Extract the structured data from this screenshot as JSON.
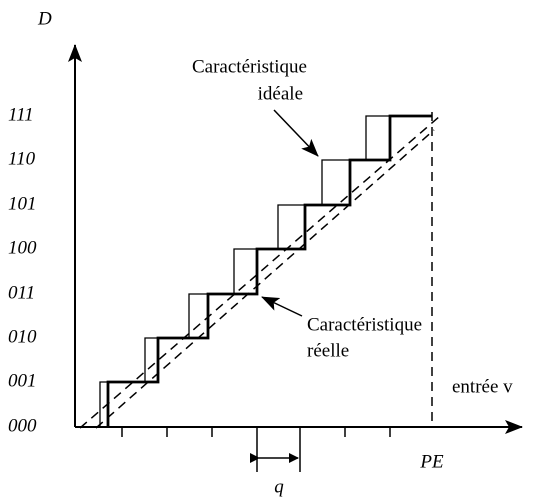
{
  "y_axis_label": "D",
  "x_axis_label": "entrée v",
  "full_scale_label": "PE",
  "step_label": "q",
  "codes": [
    "000",
    "001",
    "010",
    "011",
    "100",
    "101",
    "110",
    "111"
  ],
  "ideal_annotation": [
    "Caractéristique",
    "idéale"
  ],
  "real_annotation": [
    "Caractéristique",
    "réelle"
  ]
}
